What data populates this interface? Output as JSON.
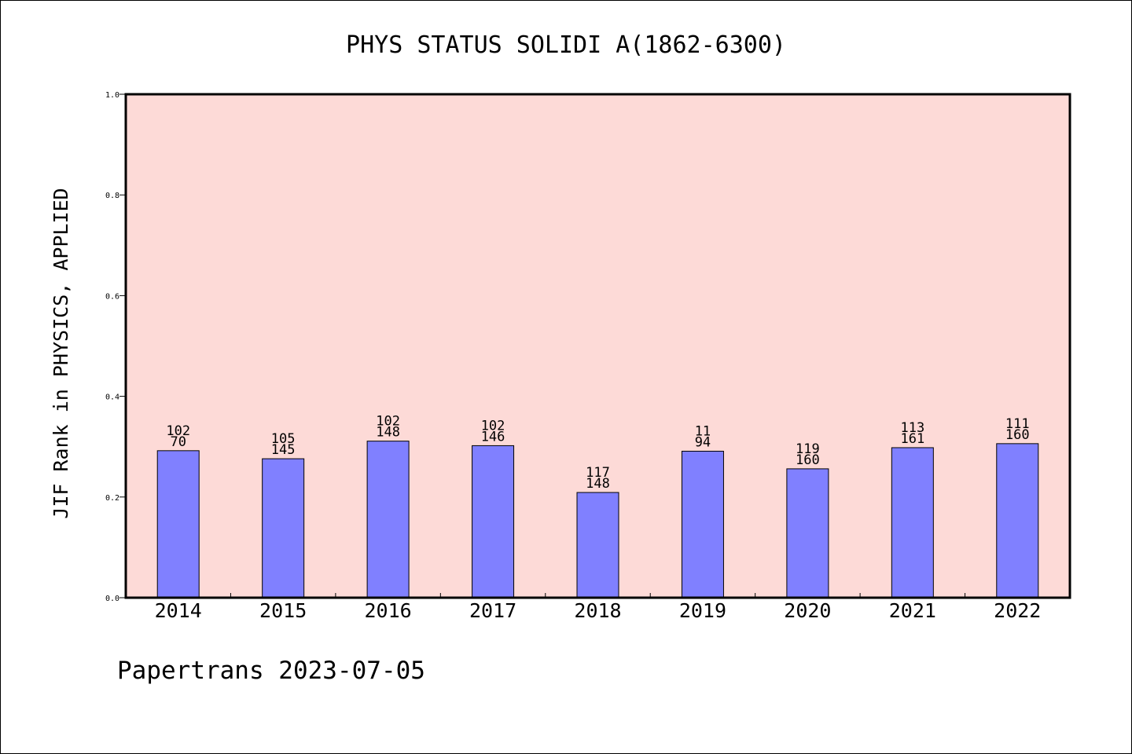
{
  "colors": {
    "plot_background": "#fddad7",
    "bar_fill": "#8080ff",
    "bar_stroke": "#000000",
    "axis": "#000000"
  },
  "chart_data": {
    "type": "bar",
    "title": "PHYS STATUS SOLIDI A(1862-6300)",
    "xlabel": "",
    "ylabel": "JIF Rank in PHYSICS, APPLIED",
    "ylim": [
      0.0,
      1.0
    ],
    "yticks": [
      "0.0",
      "0.2",
      "0.4",
      "0.6",
      "0.8",
      "1.0"
    ],
    "grid": false,
    "categories": [
      "2014",
      "2015",
      "2016",
      "2017",
      "2018",
      "2019",
      "2020",
      "2021",
      "2022"
    ],
    "values": [
      0.292,
      0.276,
      0.311,
      0.302,
      0.209,
      0.291,
      0.256,
      0.298,
      0.306
    ],
    "labels_top": [
      "102",
      "105",
      "102",
      "102",
      "117",
      "11",
      "119",
      "113",
      "111"
    ],
    "labels_bottom": [
      "70",
      "145",
      "148",
      "146",
      "148",
      "94",
      "160",
      "161",
      "160"
    ]
  },
  "footer": {
    "text": "Papertrans 2023-07-05"
  }
}
